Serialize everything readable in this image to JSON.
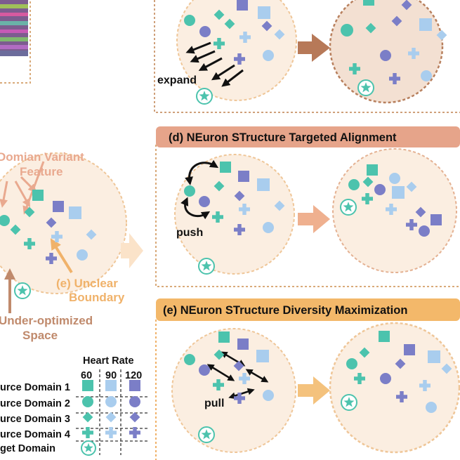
{
  "colors": {
    "teal": "#4cc3ad",
    "light_blue": "#a9cdee",
    "purple": "#7b7ec7",
    "orange_title": "#f3b86a",
    "salmon_title": "#e6a48a",
    "panel_border": "#d9aa7a",
    "circle_fill": "#f9ecdf",
    "circle_border": "#efc698",
    "brown_arrow": "#b77958",
    "salmon_arrow": "#efb08f",
    "orange_arrow": "#f4c27d",
    "label_salmon": "#e9a98f",
    "label_orange": "#f0b26a",
    "label_brown": "#c08a6c"
  },
  "left": {
    "feature_label_line1": "Domian Variant",
    "feature_label_line2": "Feature",
    "boundary_label_line1": "(e) Unclear",
    "boundary_label_line2": "Boundary",
    "space_label_line1": "Under-optimized",
    "space_label_line2": "Space"
  },
  "panels": {
    "c": {
      "action_label": "expand"
    },
    "d": {
      "title": "(d) NEuron STructure Targeted Alignment",
      "action_label": "push"
    },
    "e": {
      "title": "(e) NEuron STructure Diversity Maximization",
      "action_label": "pull"
    }
  },
  "legend": {
    "header": "Heart Rate",
    "columns": [
      "60",
      "90",
      "120"
    ],
    "rows": [
      {
        "label": "urce Domain 1",
        "shape": "square"
      },
      {
        "label": "urce Domain 2",
        "shape": "circle"
      },
      {
        "label": "urce Domain 3",
        "shape": "diamond"
      },
      {
        "label": "urce Domain 4",
        "shape": "plus"
      },
      {
        "label": "get Domain",
        "shape": "star"
      }
    ]
  }
}
